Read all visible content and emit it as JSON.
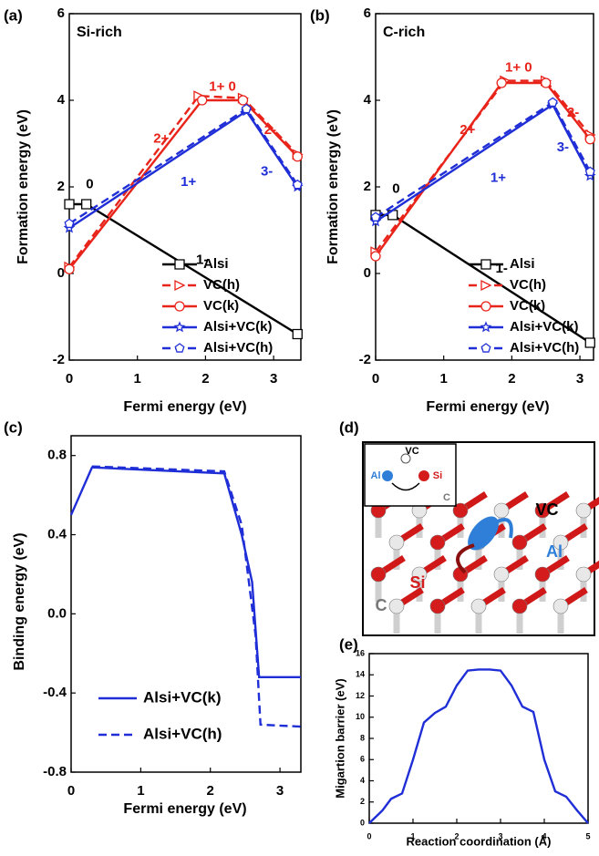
{
  "chart_data": [
    {
      "type": "line",
      "panel": "(a)",
      "title": "Si-rich",
      "x_label": "Fermi energy (eV)",
      "y_label": "Formation energy (eV)",
      "xlim": [
        0,
        3.4
      ],
      "ylim": [
        -2,
        6
      ],
      "xticks": [
        0,
        1,
        2,
        3
      ],
      "yticks": [
        -2,
        0,
        2,
        4,
        6
      ],
      "legend": "lower right",
      "series": [
        {
          "name": "Alsi",
          "color": "#000000",
          "marker": "square",
          "dashed": false,
          "x": [
            0,
            0.25,
            3.35
          ],
          "values": [
            1.6,
            1.6,
            -1.4
          ]
        },
        {
          "name": "VC(h)",
          "color": "#e8231a",
          "marker": "triangle",
          "dashed": true,
          "x": [
            0,
            1.9,
            2.55,
            3.35
          ],
          "values": [
            0.15,
            4.1,
            4.05,
            2.75
          ]
        },
        {
          "name": "VC(k)",
          "color": "#e8231a",
          "marker": "circle",
          "dashed": false,
          "x": [
            0,
            1.95,
            2.55,
            3.35
          ],
          "values": [
            0.1,
            4.0,
            4.0,
            2.7
          ]
        },
        {
          "name": "Alsi+VC(k)",
          "color": "#1f2ed6",
          "marker": "star",
          "dashed": false,
          "x": [
            0,
            2.6,
            3.35
          ],
          "values": [
            1.05,
            3.75,
            2.0
          ]
        },
        {
          "name": "Alsi+VC(h)",
          "color": "#1f2ed6",
          "marker": "pentagon",
          "dashed": true,
          "x": [
            0,
            2.6,
            3.35
          ],
          "values": [
            1.15,
            3.8,
            2.05
          ]
        }
      ],
      "annotations": [
        {
          "text": "0",
          "color": "#000000"
        },
        {
          "text": "1-",
          "color": "#000000"
        },
        {
          "text": "2+",
          "color": "#e8231a"
        },
        {
          "text": "1+ 0",
          "color": "#e8231a"
        },
        {
          "text": "2-",
          "color": "#e8231a"
        },
        {
          "text": "1+",
          "color": "#1f2ed6"
        },
        {
          "text": "3-",
          "color": "#1f2ed6"
        }
      ]
    },
    {
      "type": "line",
      "panel": "(b)",
      "title": "C-rich",
      "x_label": "Fermi energy (eV)",
      "y_label": "Formation energy (eV)",
      "xlim": [
        0,
        3.2
      ],
      "ylim": [
        -2,
        6
      ],
      "xticks": [
        0,
        1,
        2,
        3
      ],
      "yticks": [
        -2,
        0,
        2,
        4,
        6
      ],
      "legend": "lower right",
      "series": [
        {
          "name": "Alsi",
          "color": "#000000",
          "marker": "square",
          "dashed": false,
          "x": [
            0,
            0.25,
            3.15
          ],
          "values": [
            1.35,
            1.35,
            -1.6
          ]
        },
        {
          "name": "VC(h)",
          "color": "#e8231a",
          "marker": "triangle",
          "dashed": true,
          "x": [
            0,
            1.9,
            2.5,
            3.15
          ],
          "values": [
            0.5,
            4.45,
            4.45,
            3.2
          ]
        },
        {
          "name": "VC(k)",
          "color": "#e8231a",
          "marker": "circle",
          "dashed": false,
          "x": [
            0,
            1.85,
            2.5,
            3.15
          ],
          "values": [
            0.4,
            4.4,
            4.4,
            3.1
          ]
        },
        {
          "name": "Alsi+VC(k)",
          "color": "#1f2ed6",
          "marker": "star",
          "dashed": false,
          "x": [
            0,
            2.6,
            3.15
          ],
          "values": [
            1.2,
            3.9,
            2.25
          ]
        },
        {
          "name": "Alsi+VC(h)",
          "color": "#1f2ed6",
          "marker": "pentagon",
          "dashed": true,
          "x": [
            0,
            2.6,
            3.15
          ],
          "values": [
            1.3,
            3.95,
            2.35
          ]
        }
      ],
      "annotations": [
        {
          "text": "0",
          "color": "#000000"
        },
        {
          "text": "1-",
          "color": "#000000"
        },
        {
          "text": "2+",
          "color": "#e8231a"
        },
        {
          "text": "1+ 0",
          "color": "#e8231a"
        },
        {
          "text": "2-",
          "color": "#e8231a"
        },
        {
          "text": "1+",
          "color": "#1f2ed6"
        },
        {
          "text": "3-",
          "color": "#1f2ed6"
        }
      ]
    },
    {
      "type": "line",
      "panel": "(c)",
      "x_label": "Fermi energy (eV)",
      "y_label": "Binding energy (eV)",
      "xlim": [
        0,
        3.3
      ],
      "ylim": [
        -0.8,
        0.9
      ],
      "xticks": [
        0,
        1,
        2,
        3
      ],
      "yticks": [
        -0.8,
        -0.4,
        {
          "value": 0,
          "label": "0.0"
        },
        0.4,
        0.8
      ],
      "legend": "lower right",
      "series": [
        {
          "name": "Alsi+VC(k)",
          "color": "#1f2ed6",
          "dashed": false,
          "x": [
            0,
            0.3,
            2.2,
            2.45,
            2.6,
            2.7,
            3.3
          ],
          "values": [
            0.5,
            0.74,
            0.71,
            0.4,
            0.16,
            -0.32,
            -0.32
          ]
        },
        {
          "name": "Alsi+VC(h)",
          "color": "#1f2ed6",
          "dashed": true,
          "x": [
            0.3,
            2.2,
            2.45,
            2.65,
            2.72,
            3.3
          ],
          "values": [
            0.745,
            0.72,
            0.45,
            -0.11,
            -0.56,
            -0.57
          ]
        }
      ]
    },
    {
      "type": "line",
      "panel": "(e)",
      "x_label": "Reaction coordination (Å)",
      "y_label": "Migartion barrier (eV)",
      "xlim": [
        0,
        5
      ],
      "ylim": [
        0,
        16
      ],
      "xticks": [
        0,
        1,
        2,
        3,
        4,
        5
      ],
      "yticks": [
        0,
        2,
        4,
        6,
        8,
        10,
        12,
        14,
        16
      ],
      "series": [
        {
          "color": "#1f2ed6",
          "dashed": false,
          "x": [
            0,
            0.3,
            0.5,
            0.75,
            1,
            1.25,
            1.5,
            1.75,
            2,
            2.25,
            2.5,
            2.75,
            3,
            3.25,
            3.5,
            3.75,
            4,
            4.25,
            4.5,
            4.75,
            5
          ],
          "values": [
            0,
            1.2,
            2.3,
            2.8,
            6,
            9.5,
            10.4,
            11,
            13,
            14.4,
            14.5,
            14.5,
            14.4,
            13,
            11,
            10.5,
            6,
            3,
            2.5,
            1.2,
            0
          ]
        }
      ]
    }
  ],
  "figure_d": {
    "panel": "(d)",
    "labels": [
      "VC",
      "Al",
      "Si",
      "C"
    ],
    "inset_labels": [
      "VC",
      "Al",
      "Si",
      "C"
    ]
  }
}
